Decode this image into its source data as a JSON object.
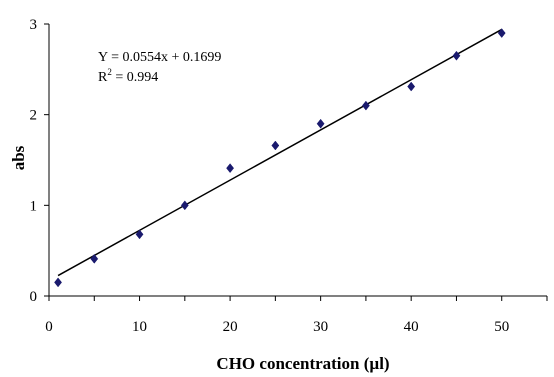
{
  "chart_data": {
    "type": "scatter",
    "xlabel": "CHO concentration (µl)",
    "ylabel": "abs",
    "xlim": [
      0,
      55
    ],
    "ylim": [
      0,
      3
    ],
    "x_ticks": [
      0,
      10,
      20,
      30,
      40,
      50
    ],
    "x_minor_step": 5,
    "y_ticks": [
      0,
      1,
      2,
      3
    ],
    "grid": false,
    "legend": "none",
    "series": [
      {
        "marker": "diamond",
        "color": "#1a1a6e",
        "x": [
          1,
          5,
          10,
          15,
          20,
          25,
          30,
          35,
          40,
          45,
          50
        ],
        "y": [
          0.15,
          0.41,
          0.68,
          1.0,
          1.41,
          1.66,
          1.9,
          2.1,
          2.31,
          2.65,
          2.9
        ]
      }
    ],
    "trendline": {
      "type": "linear",
      "slope": 0.0554,
      "intercept": 0.1699,
      "x_range": [
        1,
        50
      ],
      "color": "#000000"
    },
    "annotations": {
      "equation": "Y = 0.0554x + 0.1699",
      "r2_prefix": "R",
      "r2_superscript": "2",
      "r2_value": " = 0.994"
    }
  }
}
